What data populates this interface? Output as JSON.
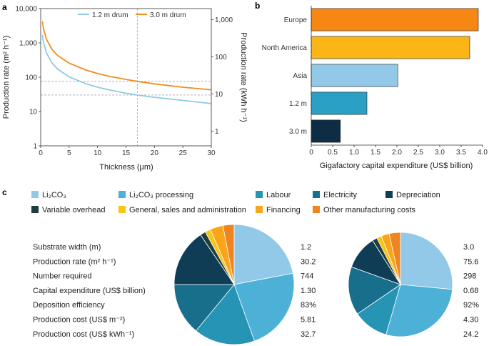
{
  "panels": {
    "a": "a",
    "b": "b",
    "c": "c"
  },
  "chart_data": [
    {
      "type": "line",
      "xlabel": "Thickness (µm)",
      "ylabel": "Production rate (m² h⁻¹)",
      "y2label": "Production rate (kWh h⁻¹)",
      "xlim": [
        0,
        30
      ],
      "ylim": [
        1,
        10000
      ],
      "yscale": "log",
      "y2lim": [
        0.4,
        2000
      ],
      "x_ticks": [
        "0",
        "5",
        "10",
        "15",
        "20",
        "25",
        "30"
      ],
      "y_ticks": [
        "1",
        "10",
        "100",
        "1,000",
        "10,000"
      ],
      "y2_ticks": [
        "1",
        "10",
        "100",
        "1,000"
      ],
      "legend_position": "top",
      "grid": false,
      "reference_lines": {
        "x": 17,
        "y": [
          30.2,
          75.6
        ]
      },
      "series": [
        {
          "name": "1.2 m drum",
          "color": "#8ecae6",
          "x": [
            0.3,
            0.5,
            1,
            2,
            3,
            5,
            8,
            10,
            12,
            15,
            17,
            20,
            25,
            30
          ],
          "y": [
            1700,
            1030,
            513,
            257,
            171,
            103,
            64,
            51,
            43,
            34,
            30.2,
            26,
            21,
            17
          ]
        },
        {
          "name": "3.0 m drum",
          "color": "#f28c1f",
          "x": [
            0.3,
            0.5,
            1,
            2,
            3,
            5,
            8,
            10,
            12,
            15,
            17,
            20,
            25,
            30
          ],
          "y": [
            4280,
            2570,
            1285,
            643,
            428,
            257,
            161,
            128,
            107,
            86,
            75.6,
            64,
            51,
            43
          ]
        }
      ]
    },
    {
      "type": "bar",
      "orientation": "horizontal",
      "categories": [
        "Europe",
        "North America",
        "Asia",
        "1.2 m",
        "3.0 m"
      ],
      "values": [
        3.9,
        3.7,
        2.02,
        1.3,
        0.68
      ],
      "colors": [
        "#f68712",
        "#fbb516",
        "#92c9e8",
        "#2aa0c4",
        "#0e2d45"
      ],
      "xlabel": "Gigafactory capital expenditure (US$ billion)",
      "xlim": [
        0,
        4.0
      ],
      "x_ticks": [
        "0",
        "0.5",
        "1.0",
        "1.5",
        "2.0",
        "2.5",
        "3.0",
        "3.5",
        "4.0"
      ]
    },
    {
      "type": "pie",
      "legend": [
        {
          "label": "Li₂CO₃",
          "color": "#92c9e8"
        },
        {
          "label": "Li₂CO₃ processing",
          "color": "#4db1d7"
        },
        {
          "label": "Labour",
          "color": "#2594b5"
        },
        {
          "label": "Electricity",
          "color": "#176f8c"
        },
        {
          "label": "Depreciation",
          "color": "#0e3d55"
        },
        {
          "label": "Variable overhead",
          "color": "#1e3d3b"
        },
        {
          "label": "General, sales and administration",
          "color": "#fbc313"
        },
        {
          "label": "Financing",
          "color": "#f8a51a"
        },
        {
          "label": "Other manufacturing costs",
          "color": "#ef8520"
        }
      ],
      "table": {
        "rows": [
          {
            "label": "Substrate width (m)",
            "v12": "1.2",
            "v30": "3.0"
          },
          {
            "label": "Production rate (m² h⁻¹)",
            "v12": "30.2",
            "v30": "75.6"
          },
          {
            "label": "Number required",
            "v12": "744",
            "v30": "298"
          },
          {
            "label": "Capital expenditure (US$ billion)",
            "v12": "1.30",
            "v30": "0.68"
          },
          {
            "label": "Deposition efficiency",
            "v12": "83%",
            "v30": "92%"
          },
          {
            "label": "Production cost (US$ m⁻²)",
            "v12": "5.81",
            "v30": "4.30"
          },
          {
            "label": "Production cost (US$ kWh⁻¹)",
            "v12": "32.7",
            "v30": "24.2"
          }
        ]
      },
      "pies": [
        {
          "drum": "1.2 m",
          "values": [
            22,
            22.5,
            16.5,
            14,
            15.5,
            1.5,
            1.5,
            3.5,
            3
          ]
        },
        {
          "drum": "3.0 m",
          "values": [
            26.5,
            28,
            11,
            15,
            10.5,
            1.5,
            1.5,
            2.5,
            3.5
          ]
        }
      ]
    }
  ]
}
